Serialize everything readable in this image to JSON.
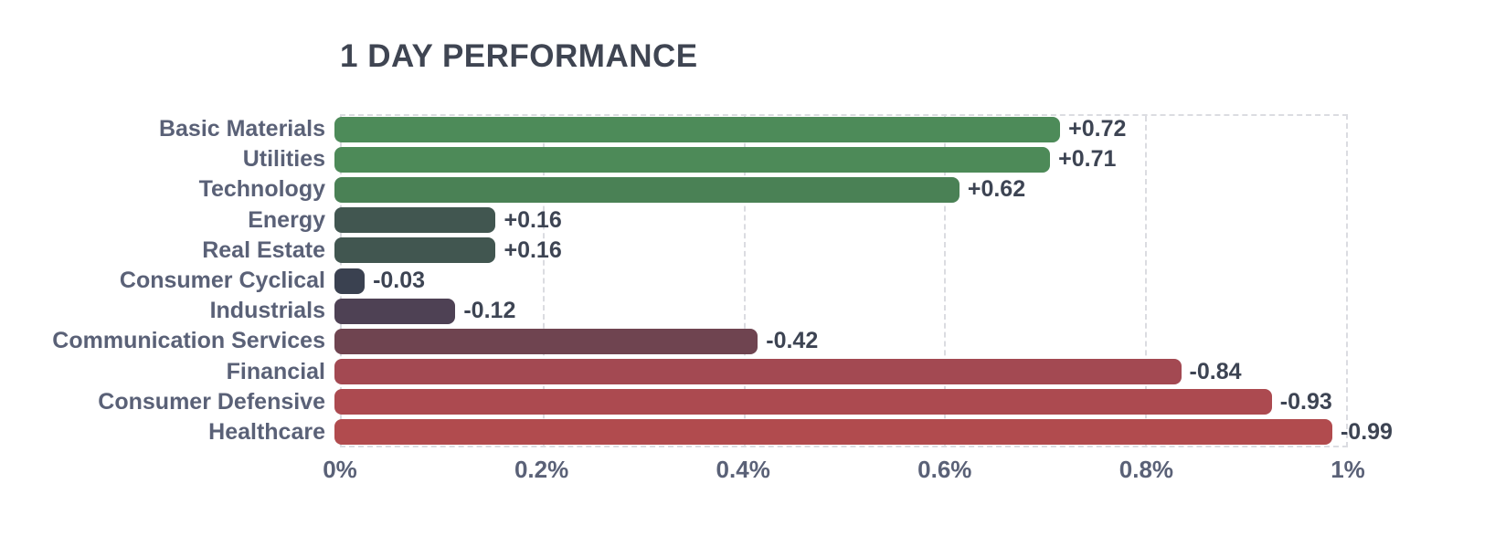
{
  "title": "1 DAY PERFORMANCE",
  "colors": {
    "background": "#ffffff",
    "title_text": "#3f4552",
    "category_label_text": "#5a6177",
    "value_label_text": "#3d4453",
    "grid": "#dbdce1",
    "positive_green": "#4d8b59",
    "negative_red": "#b14b4e"
  },
  "chart_data": {
    "type": "bar",
    "orientation": "horizontal",
    "title": "1 DAY PERFORMANCE",
    "categories": [
      "Basic Materials",
      "Utilities",
      "Technology",
      "Energy",
      "Real Estate",
      "Consumer Cyclical",
      "Industrials",
      "Communication Services",
      "Financial",
      "Consumer Defensive",
      "Healthcare"
    ],
    "values": [
      0.72,
      0.71,
      0.62,
      0.16,
      0.16,
      -0.03,
      -0.12,
      -0.42,
      -0.84,
      -0.93,
      -0.99
    ],
    "value_labels": [
      "+0.72",
      "+0.71",
      "+0.62",
      "+0.16",
      "+0.16",
      "-0.03",
      "-0.12",
      "-0.42",
      "-0.84",
      "-0.93",
      "-0.99"
    ],
    "bar_colors": [
      "#4d8b59",
      "#4d8a58",
      "#4a8155",
      "#415650",
      "#415650",
      "#3a4150",
      "#4e4154",
      "#6f4450",
      "#a34952",
      "#ac4a50",
      "#b14b4e"
    ],
    "x_tick_labels": [
      "0%",
      "0.2%",
      "0.4%",
      "0.6%",
      "0.8%",
      "1%"
    ],
    "xlim": [
      0,
      1
    ],
    "bar_length_represents": "absolute value of percent change",
    "grid": "dashed vertical lines at each x tick, dashed frame around plot",
    "legend": "none"
  }
}
